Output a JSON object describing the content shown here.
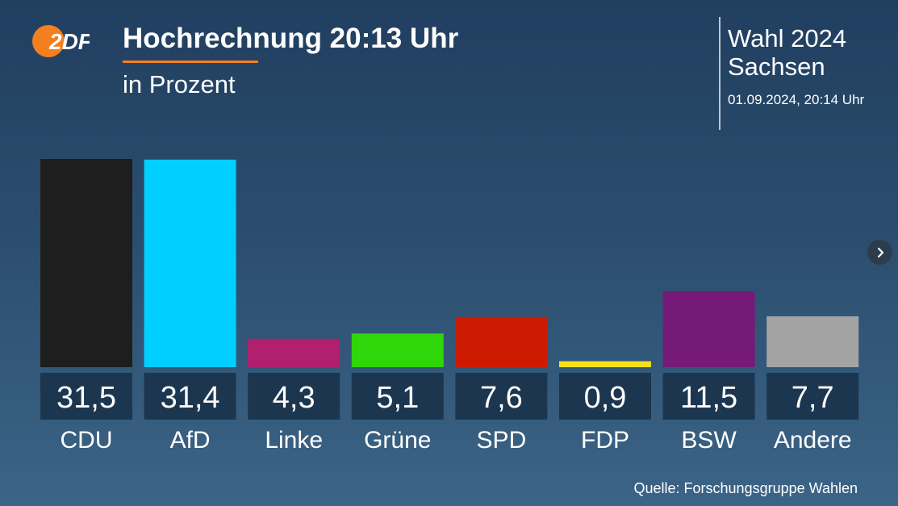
{
  "header": {
    "logo_text": "2DF",
    "title": "Hochrechnung 20:13 Uhr",
    "subtitle": "in Prozent"
  },
  "meta": {
    "election": "Wahl 2024",
    "region": "Sachsen",
    "timestamp": "01.09.2024, 20:14 Uhr"
  },
  "nav": {
    "next_icon": "chevron-right-icon"
  },
  "footer": {
    "source": "Quelle: Forschungsgruppe Wahlen"
  },
  "colors": {
    "accent": "#f47f1f",
    "label_box": "#1d3650"
  },
  "chart_data": {
    "type": "bar",
    "title": "Hochrechnung 20:13 Uhr",
    "ylabel": "in Prozent",
    "ylim": [
      0,
      31.5
    ],
    "categories": [
      "CDU",
      "AfD",
      "Linke",
      "Grüne",
      "SPD",
      "FDP",
      "BSW",
      "Andere"
    ],
    "values": [
      31.5,
      31.4,
      4.3,
      5.1,
      7.6,
      0.9,
      11.5,
      7.7
    ],
    "value_labels": [
      "31,5",
      "31,4",
      "4,3",
      "5,1",
      "7,6",
      "0,9",
      "11,5",
      "7,7"
    ],
    "colors": [
      "#1e1e1e",
      "#00cfff",
      "#b0206e",
      "#2ed60a",
      "#cc1b00",
      "#f5e11a",
      "#761a77",
      "#a3a3a3"
    ]
  }
}
